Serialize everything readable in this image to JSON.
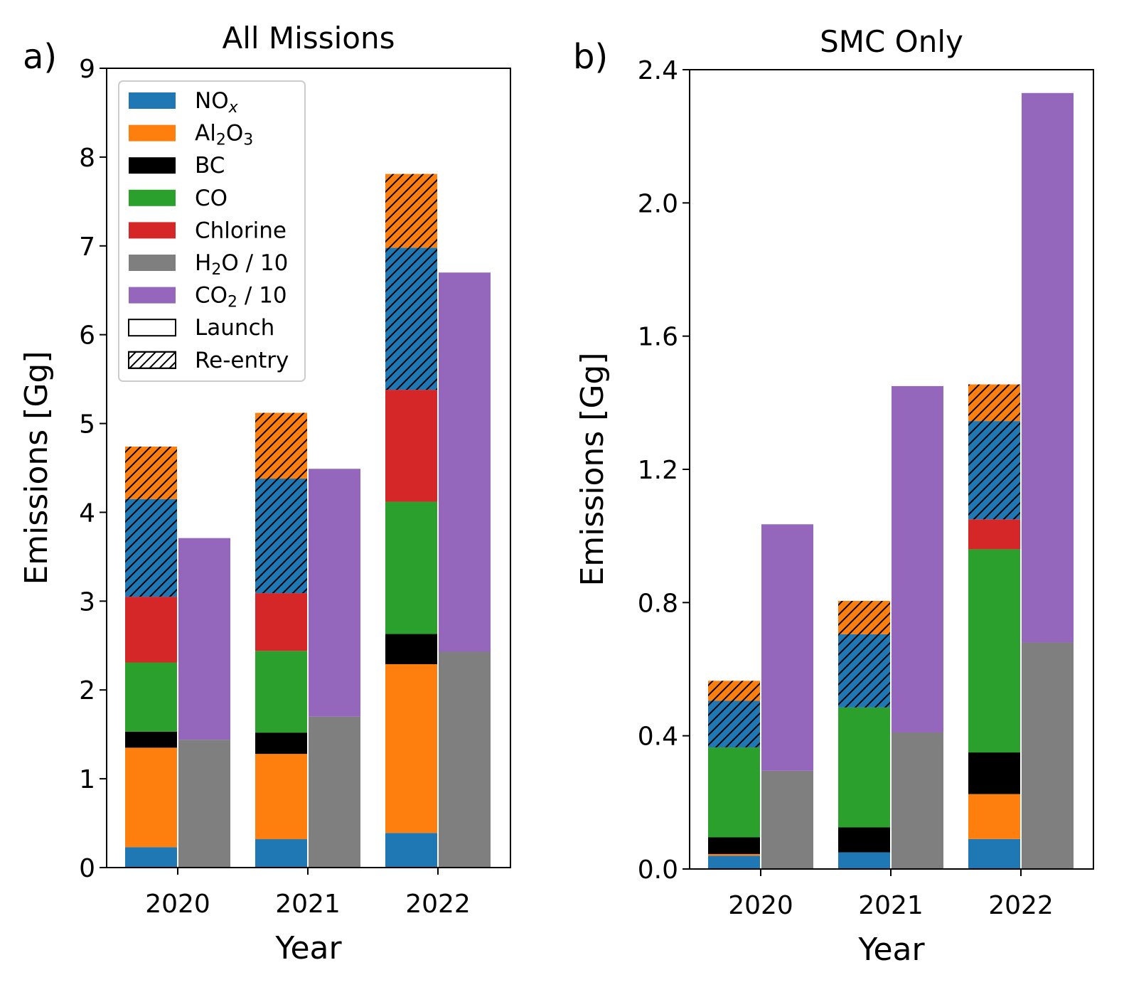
{
  "figure": {
    "legend": {
      "placement": "upper-left of panel a",
      "items": [
        {
          "id": "nox",
          "label": "NO",
          "sub": "x",
          "suffix": "",
          "sub_italic": true,
          "color": "#1f77b4",
          "hatch": false
        },
        {
          "id": "al2o3",
          "label": "Al",
          "sub": "2",
          "mid": "O",
          "sub2": "3",
          "suffix": "",
          "color": "#ff7f0e",
          "hatch": false
        },
        {
          "id": "bc",
          "label": "BC",
          "sub": "",
          "suffix": "",
          "color": "#000000",
          "hatch": false
        },
        {
          "id": "co",
          "label": "CO",
          "sub": "",
          "suffix": "",
          "color": "#2ca02c",
          "hatch": false
        },
        {
          "id": "chlorine",
          "label": "Chlorine",
          "sub": "",
          "suffix": "",
          "color": "#d62728",
          "hatch": false
        },
        {
          "id": "h2o",
          "label": "H",
          "sub": "2",
          "suffix": "O / 10",
          "color": "#7f7f7f",
          "hatch": false
        },
        {
          "id": "co2",
          "label": "CO",
          "sub": "2",
          "suffix": " / 10",
          "color": "#9467bd",
          "hatch": false
        },
        {
          "id": "launch",
          "label": "Launch",
          "sub": "",
          "suffix": "",
          "color": "#ffffff",
          "hatch": false,
          "outline": true
        },
        {
          "id": "reentry",
          "label": "Re-entry",
          "sub": "",
          "suffix": "",
          "color": "#ffffff",
          "hatch": true,
          "outline": true
        }
      ]
    }
  },
  "chart_data": [
    {
      "type": "bar",
      "stacked": true,
      "panel_label": "a)",
      "title": "All Missions",
      "xlabel": "Year",
      "ylabel": "Emissions [Gg]",
      "ylim": [
        0,
        9
      ],
      "yticks": [
        "0",
        "1",
        "2",
        "3",
        "4",
        "5",
        "6",
        "7",
        "8",
        "9"
      ],
      "categories": [
        "2020",
        "2021",
        "2022"
      ],
      "grid": false,
      "left_bar_series": [
        {
          "name": "NOx launch",
          "color": "#1f77b4",
          "hatch": false,
          "values": [
            0.23,
            0.32,
            0.39
          ]
        },
        {
          "name": "Al2O3 launch",
          "color": "#ff7f0e",
          "hatch": false,
          "values": [
            1.12,
            0.96,
            1.9
          ]
        },
        {
          "name": "BC launch",
          "color": "#000000",
          "hatch": false,
          "values": [
            0.18,
            0.24,
            0.34
          ]
        },
        {
          "name": "CO launch",
          "color": "#2ca02c",
          "hatch": false,
          "values": [
            0.78,
            0.92,
            1.49
          ]
        },
        {
          "name": "Chlorine launch",
          "color": "#d62728",
          "hatch": false,
          "values": [
            0.74,
            0.65,
            1.26
          ]
        },
        {
          "name": "NOx re-entry",
          "color": "#1f77b4",
          "hatch": true,
          "values": [
            1.1,
            1.29,
            1.6
          ]
        },
        {
          "name": "Al2O3 re-entry",
          "color": "#ff7f0e",
          "hatch": true,
          "values": [
            0.59,
            0.74,
            0.83
          ]
        }
      ],
      "right_bar_series": [
        {
          "name": "H2O / 10",
          "color": "#7f7f7f",
          "hatch": false,
          "values": [
            1.44,
            1.7,
            2.43
          ]
        },
        {
          "name": "CO2 / 10",
          "color": "#9467bd",
          "hatch": false,
          "values": [
            2.27,
            2.79,
            4.27
          ]
        }
      ]
    },
    {
      "type": "bar",
      "stacked": true,
      "panel_label": "b)",
      "title": "SMC Only",
      "xlabel": "Year",
      "ylabel": "Emissions [Gg]",
      "ylim": [
        0,
        2.4
      ],
      "yticks": [
        "0.0",
        "0.4",
        "0.8",
        "1.2",
        "1.6",
        "2.0",
        "2.4"
      ],
      "categories": [
        "2020",
        "2021",
        "2022"
      ],
      "grid": false,
      "left_bar_series": [
        {
          "name": "NOx launch",
          "color": "#1f77b4",
          "hatch": false,
          "values": [
            0.04,
            0.05,
            0.09
          ]
        },
        {
          "name": "Al2O3 launch",
          "color": "#ff7f0e",
          "hatch": false,
          "values": [
            0.005,
            0.0,
            0.135
          ]
        },
        {
          "name": "BC launch",
          "color": "#000000",
          "hatch": false,
          "values": [
            0.05,
            0.075,
            0.125
          ]
        },
        {
          "name": "CO launch",
          "color": "#2ca02c",
          "hatch": false,
          "values": [
            0.27,
            0.36,
            0.61
          ]
        },
        {
          "name": "Chlorine launch",
          "color": "#d62728",
          "hatch": false,
          "values": [
            0.0,
            0.0,
            0.09
          ]
        },
        {
          "name": "NOx re-entry",
          "color": "#1f77b4",
          "hatch": true,
          "values": [
            0.14,
            0.22,
            0.295
          ]
        },
        {
          "name": "Al2O3 re-entry",
          "color": "#ff7f0e",
          "hatch": true,
          "values": [
            0.06,
            0.1,
            0.11
          ]
        }
      ],
      "right_bar_series": [
        {
          "name": "H2O / 10",
          "color": "#7f7f7f",
          "hatch": false,
          "values": [
            0.295,
            0.41,
            0.68
          ]
        },
        {
          "name": "CO2 / 10",
          "color": "#9467bd",
          "hatch": false,
          "values": [
            0.74,
            1.04,
            1.65
          ]
        }
      ]
    }
  ]
}
